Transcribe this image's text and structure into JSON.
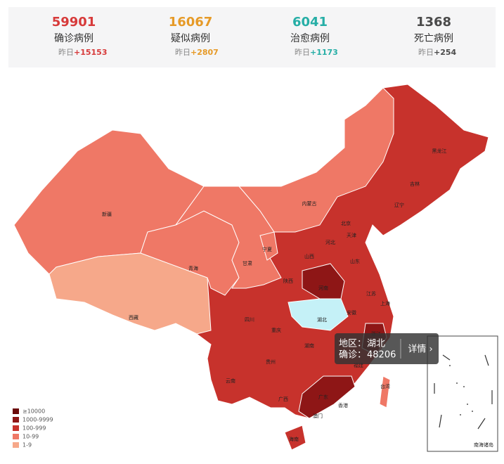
{
  "stats": [
    {
      "value": 59901,
      "label": "确诊病例",
      "delta_prefix": "昨日",
      "delta": "+15153",
      "color": "#d73a3a"
    },
    {
      "value": 16067,
      "label": "疑似病例",
      "delta_prefix": "昨日",
      "delta": "+2807",
      "color": "#e69a27"
    },
    {
      "value": 6041,
      "label": "治愈病例",
      "delta_prefix": "昨日",
      "delta": "+1173",
      "color": "#26aea6"
    },
    {
      "value": 1368,
      "label": "死亡病例",
      "delta_prefix": "昨日",
      "delta": "+254",
      "color": "#4a4a4a"
    }
  ],
  "map": {
    "base_color": "#c7322c",
    "regions": [
      {
        "name": "新疆",
        "color": "#ef7866"
      },
      {
        "name": "西藏",
        "color": "#f6a88a"
      },
      {
        "name": "青海",
        "color": "#ef7866"
      },
      {
        "name": "甘肃",
        "color": "#ef7866"
      },
      {
        "name": "内蒙古",
        "color": "#ef7866"
      },
      {
        "name": "宁夏",
        "color": "#ef7866"
      },
      {
        "name": "河南",
        "color": "#8e1616"
      },
      {
        "name": "湖北",
        "color": "#c5f1f7"
      },
      {
        "name": "广东",
        "color": "#8e1616"
      },
      {
        "name": "浙江",
        "color": "#8e1616"
      },
      {
        "name": "海南",
        "color": "#c7322c"
      },
      {
        "name": "台湾",
        "color": "#ef7866"
      }
    ],
    "labels": [
      "黑龙江",
      "吉林",
      "辽宁",
      "北京",
      "天津",
      "河北",
      "山西",
      "山东",
      "陕西",
      "江苏",
      "安徽",
      "上海",
      "四川",
      "重庆",
      "湖南",
      "江西",
      "贵州",
      "福建",
      "云南",
      "广西",
      "香港",
      "澳门"
    ],
    "inset_label": "南海诸岛",
    "legend": [
      {
        "label": "≥10000",
        "color": "#6b0a0a"
      },
      {
        "label": "1000-9999",
        "color": "#8e1616"
      },
      {
        "label": "100-999",
        "color": "#c7322c"
      },
      {
        "label": "10-99",
        "color": "#ef7866"
      },
      {
        "label": "1-9",
        "color": "#f6a88a"
      }
    ],
    "tooltip": {
      "region_label": "地区：",
      "region": "湖北",
      "count_label": "确诊：",
      "count": 48206,
      "link": "详情 ›"
    }
  }
}
